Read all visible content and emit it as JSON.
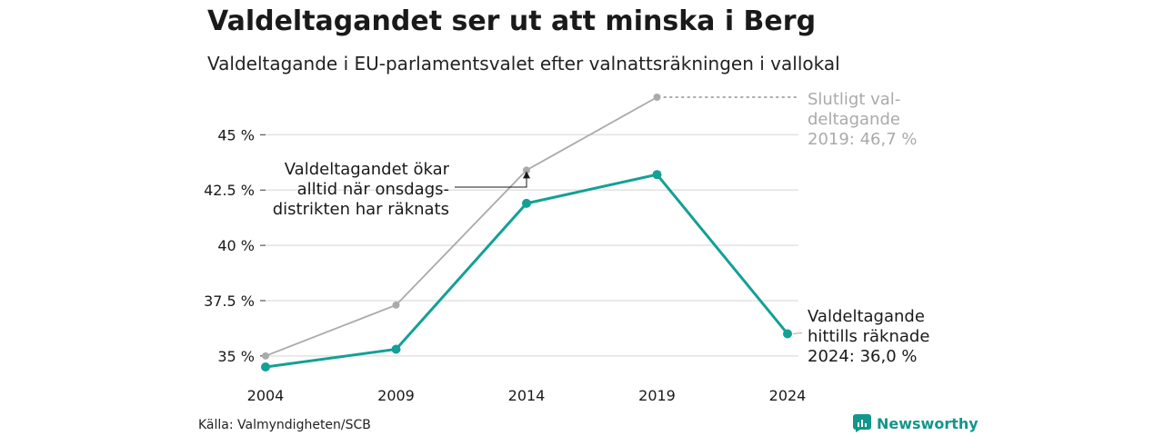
{
  "title": "Valdeltagandet ser ut att minska i Berg",
  "subtitle": "Valdeltagande i EU-parlamentsvalet efter valnattsräkningen i vallokal",
  "source": "Källa: Valmyndigheten/SCB",
  "brand": {
    "name": "Newsworthy",
    "icon": "newsworthy-logo-icon",
    "color": "#13968b"
  },
  "chart_data": {
    "type": "line",
    "x": [
      2004,
      2009,
      2014,
      2019,
      2024
    ],
    "x_tick_labels": [
      "2004",
      "2009",
      "2014",
      "2019",
      "2024"
    ],
    "y_ticks": [
      35,
      37.5,
      40,
      42.5,
      45
    ],
    "y_tick_labels": [
      "35 %",
      "37.5 %",
      "40 %",
      "42.5 %",
      "45 %"
    ],
    "ylim": [
      34.5,
      46.7
    ],
    "grid": true,
    "series": [
      {
        "key": "final",
        "color": "#aaaaaa",
        "x": [
          2004,
          2009,
          2014,
          2019
        ],
        "values": [
          35.0,
          37.3,
          43.4,
          46.7
        ]
      },
      {
        "key": "counted",
        "color": "#13a096",
        "x": [
          2004,
          2009,
          2014,
          2019,
          2024
        ],
        "values": [
          34.5,
          35.3,
          41.9,
          43.2,
          36.0
        ]
      }
    ],
    "annotations": [
      {
        "key": "final_label",
        "lines": [
          "Slutligt val-",
          "deltagande",
          "2019: 46,7 %"
        ],
        "color": "#aaaaaa"
      },
      {
        "key": "counted_label",
        "lines": [
          "Valdeltagande",
          "hittills räknade",
          "2024: 36,0 %"
        ],
        "color": "#1a1a1a"
      },
      {
        "key": "wednesday_note",
        "lines": [
          "Valdeltagandet ökar",
          "alltid när onsdags-",
          "distrikten har räknats"
        ],
        "color": "#1a1a1a"
      }
    ]
  }
}
